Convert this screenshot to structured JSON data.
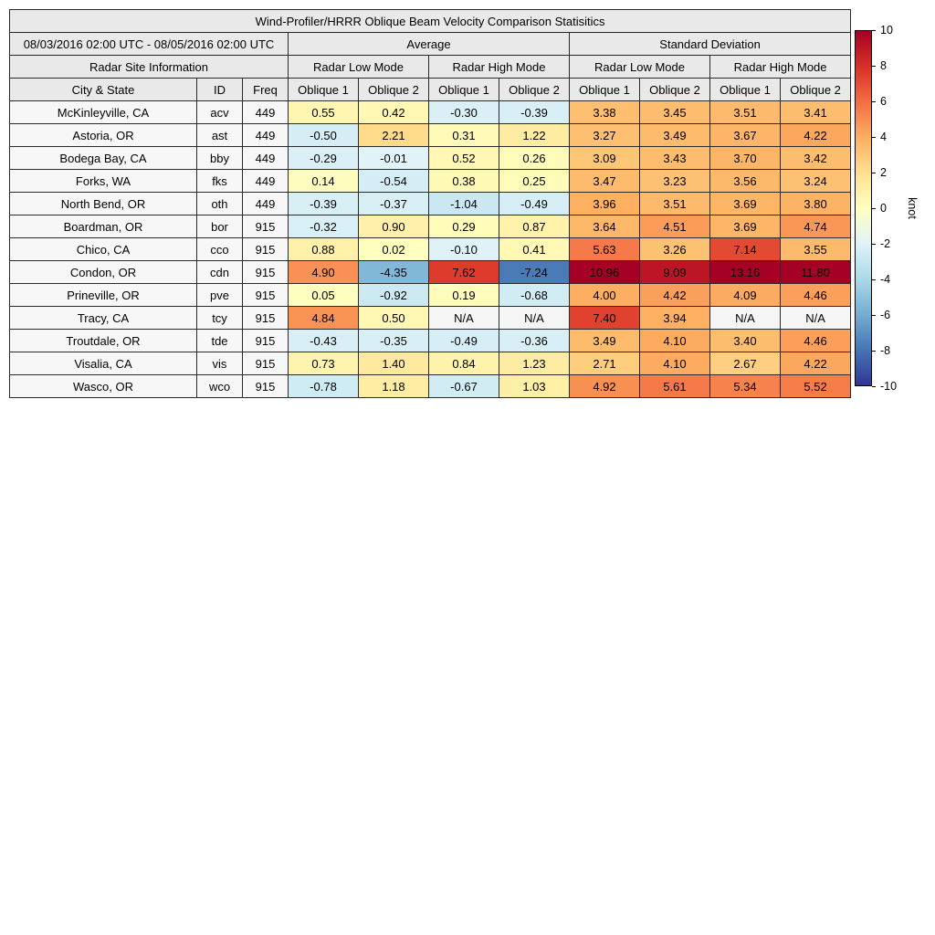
{
  "chart_data": {
    "type": "heatmap",
    "title": "Wind-Profiler/HRRR Oblique Beam Velocity Comparison Statisitics",
    "date_range": "08/03/2016 02:00 UTC - 08/05/2016 02:00 UTC",
    "groups": {
      "average": "Average",
      "standard_deviation": "Standard Deviation",
      "site_info": "Radar Site Information",
      "low_mode": "Radar Low Mode",
      "high_mode": "Radar High Mode"
    },
    "columns": [
      "City & State",
      "ID",
      "Freq",
      "Oblique 1",
      "Oblique 2",
      "Oblique 1",
      "Oblique 2",
      "Oblique 1",
      "Oblique 2",
      "Oblique 1",
      "Oblique 2"
    ],
    "rows": [
      {
        "city": "McKinleyville, CA",
        "id": "acv",
        "freq": "449",
        "values": [
          0.55,
          0.42,
          -0.3,
          -0.39,
          3.38,
          3.45,
          3.51,
          3.41
        ]
      },
      {
        "city": "Astoria, OR",
        "id": "ast",
        "freq": "449",
        "values": [
          -0.5,
          2.21,
          0.31,
          1.22,
          3.27,
          3.49,
          3.67,
          4.22
        ]
      },
      {
        "city": "Bodega Bay, CA",
        "id": "bby",
        "freq": "449",
        "values": [
          -0.29,
          -0.01,
          0.52,
          0.26,
          3.09,
          3.43,
          3.7,
          3.42
        ]
      },
      {
        "city": "Forks, WA",
        "id": "fks",
        "freq": "449",
        "values": [
          0.14,
          -0.54,
          0.38,
          0.25,
          3.47,
          3.23,
          3.56,
          3.24
        ]
      },
      {
        "city": "North Bend, OR",
        "id": "oth",
        "freq": "449",
        "values": [
          -0.39,
          -0.37,
          -1.04,
          -0.49,
          3.96,
          3.51,
          3.69,
          3.8
        ]
      },
      {
        "city": "Boardman, OR",
        "id": "bor",
        "freq": "915",
        "values": [
          -0.32,
          0.9,
          0.29,
          0.87,
          3.64,
          4.51,
          3.69,
          4.74
        ]
      },
      {
        "city": "Chico, CA",
        "id": "cco",
        "freq": "915",
        "values": [
          0.88,
          0.02,
          -0.1,
          0.41,
          5.63,
          3.26,
          7.14,
          3.55
        ]
      },
      {
        "city": "Condon, OR",
        "id": "cdn",
        "freq": "915",
        "values": [
          4.9,
          -4.35,
          7.62,
          -7.24,
          10.96,
          9.09,
          13.16,
          11.8
        ]
      },
      {
        "city": "Prineville, OR",
        "id": "pve",
        "freq": "915",
        "values": [
          0.05,
          -0.92,
          0.19,
          -0.68,
          4.0,
          4.42,
          4.09,
          4.46
        ]
      },
      {
        "city": "Tracy, CA",
        "id": "tcy",
        "freq": "915",
        "values": [
          4.84,
          0.5,
          "N/A",
          "N/A",
          7.4,
          3.94,
          "N/A",
          "N/A"
        ]
      },
      {
        "city": "Troutdale, OR",
        "id": "tde",
        "freq": "915",
        "values": [
          -0.43,
          -0.35,
          -0.49,
          -0.36,
          3.49,
          4.1,
          3.4,
          4.46
        ]
      },
      {
        "city": "Visalia, CA",
        "id": "vis",
        "freq": "915",
        "values": [
          0.73,
          1.4,
          0.84,
          1.23,
          2.71,
          4.1,
          2.67,
          4.22
        ]
      },
      {
        "city": "Wasco, OR",
        "id": "wco",
        "freq": "915",
        "values": [
          -0.78,
          1.18,
          -0.67,
          1.03,
          4.92,
          5.61,
          5.34,
          5.52
        ]
      }
    ],
    "na_value": "N/A",
    "na_color": "#f5f5f5",
    "colormap": {
      "positive": {
        "positions": [
          0,
          2,
          4,
          6,
          8,
          10
        ],
        "colors": [
          "#ffffbf",
          "#fee090",
          "#fdae61",
          "#f46d43",
          "#d73027",
          "#a50026"
        ]
      },
      "negative": {
        "positions": [
          0,
          2.5,
          5,
          7.5,
          10
        ],
        "colors": [
          "#e0f3f8",
          "#abd9e9",
          "#74add1",
          "#4575b4",
          "#313695"
        ]
      }
    },
    "colorbar": {
      "label": "knot",
      "min": -10,
      "max": 10,
      "ticks": [
        10,
        8,
        6,
        4,
        2,
        0,
        -2,
        -4,
        -6,
        -8,
        -10
      ],
      "gradient_stops_top_to_bottom": [
        "#a50026",
        "#d73027",
        "#f46d43",
        "#fdae61",
        "#fee090",
        "#ffffbf",
        "#e0f3f8",
        "#abd9e9",
        "#74add1",
        "#4575b4",
        "#313695"
      ]
    }
  }
}
